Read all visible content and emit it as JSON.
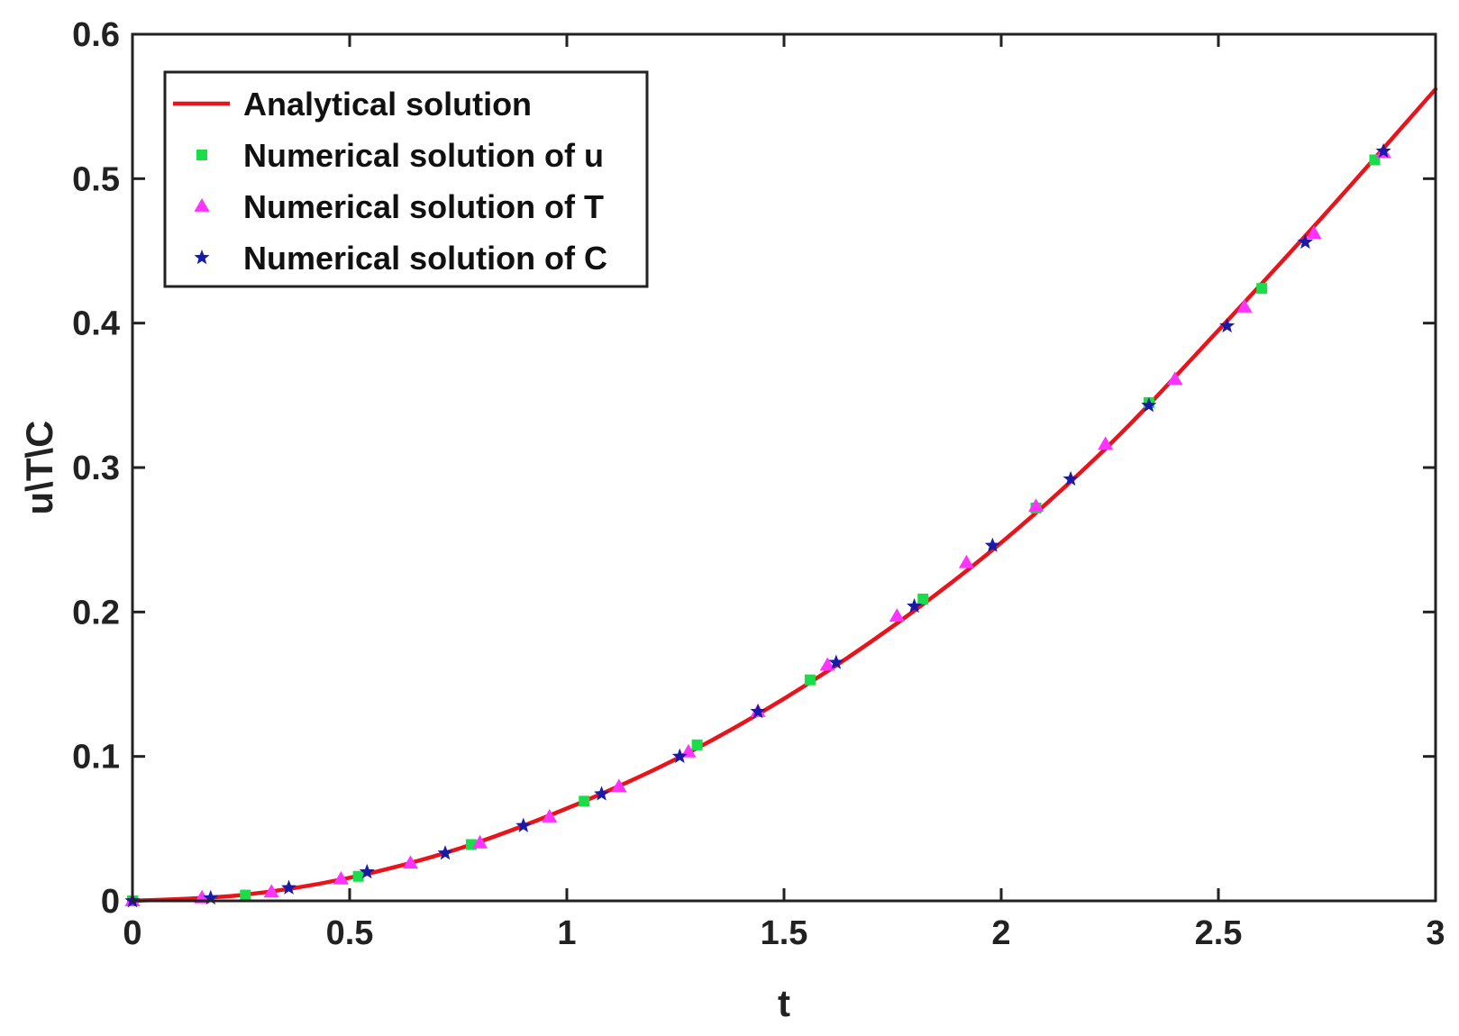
{
  "chart_data": {
    "type": "line",
    "xlabel": "t",
    "ylabel": "u\\T\\C",
    "xlim": [
      0,
      3
    ],
    "ylim": [
      0,
      0.6
    ],
    "xticks": [
      "0",
      "0.5",
      "1",
      "1.5",
      "2",
      "2.5",
      "3"
    ],
    "yticks": [
      "0",
      "0.1",
      "0.2",
      "0.3",
      "0.4",
      "0.5",
      "0.6"
    ],
    "grid": false,
    "legend_position": "top-left",
    "series": [
      {
        "name": "Analytical solution",
        "kind": "line",
        "color": "#e8141b",
        "x": [
          0,
          0.25,
          0.5,
          0.75,
          1.0,
          1.25,
          1.5,
          1.75,
          2.0,
          2.25,
          2.5,
          2.75,
          3.0
        ],
        "y": [
          0,
          0.004,
          0.016,
          0.036,
          0.064,
          0.098,
          0.14,
          0.19,
          0.248,
          0.316,
          0.395,
          0.477,
          0.562
        ]
      },
      {
        "name": "Numerical solution of u",
        "kind": "marker",
        "marker": "square",
        "color": "#1bdc4a",
        "x": [
          0,
          0.26,
          0.52,
          0.78,
          1.04,
          1.3,
          1.56,
          1.82,
          2.08,
          2.34,
          2.6,
          2.86
        ],
        "y": [
          0,
          0.004,
          0.017,
          0.039,
          0.069,
          0.108,
          0.153,
          0.209,
          0.272,
          0.345,
          0.424,
          0.513
        ]
      },
      {
        "name": "Numerical solution of T",
        "kind": "marker",
        "marker": "triangle",
        "color": "#ff33ff",
        "x": [
          0,
          0.16,
          0.32,
          0.48,
          0.64,
          0.8,
          0.96,
          1.12,
          1.28,
          1.44,
          1.6,
          1.76,
          1.92,
          2.08,
          2.24,
          2.4,
          2.56,
          2.72,
          2.88
        ],
        "y": [
          0,
          0.002,
          0.006,
          0.015,
          0.026,
          0.04,
          0.058,
          0.079,
          0.103,
          0.131,
          0.163,
          0.197,
          0.234,
          0.273,
          0.316,
          0.361,
          0.411,
          0.462,
          0.518
        ]
      },
      {
        "name": "Numerical solution of C",
        "kind": "marker",
        "marker": "star",
        "color": "#1a1aa8",
        "x": [
          0,
          0.18,
          0.36,
          0.54,
          0.72,
          0.9,
          1.08,
          1.26,
          1.44,
          1.62,
          1.8,
          1.98,
          2.16,
          2.34,
          2.52,
          2.7,
          2.88
        ],
        "y": [
          0,
          0.002,
          0.009,
          0.02,
          0.033,
          0.052,
          0.074,
          0.1,
          0.131,
          0.165,
          0.204,
          0.246,
          0.292,
          0.343,
          0.398,
          0.456,
          0.519
        ]
      }
    ]
  }
}
